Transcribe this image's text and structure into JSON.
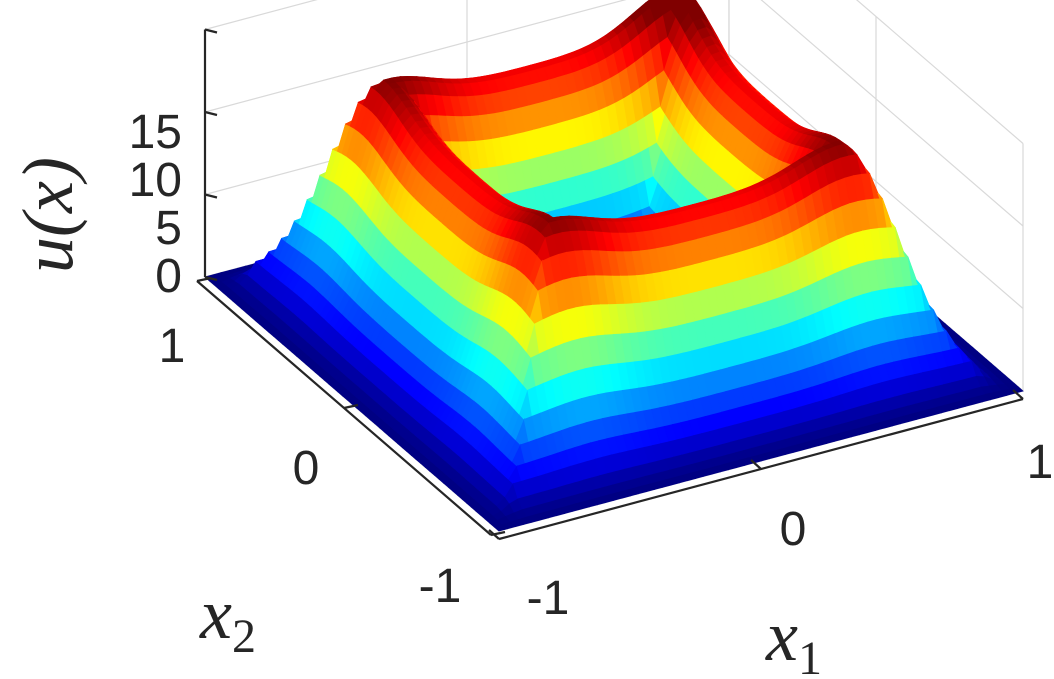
{
  "chart_data": {
    "type": "surface",
    "title": "",
    "xlabel": "x",
    "xlabel_sub": "1",
    "ylabel": "x",
    "ylabel_sub": "2",
    "zlabel": "u(x)",
    "xlim": [
      -1,
      1
    ],
    "ylim": [
      -1,
      1
    ],
    "zlim": [
      0,
      15
    ],
    "xticks": [
      -1,
      0,
      1
    ],
    "yticks": [
      -1,
      0,
      1
    ],
    "zticks": [
      0,
      5,
      10,
      15
    ],
    "xtick_labels": [
      "-1",
      "0",
      "1"
    ],
    "ytick_labels": [
      "-1",
      "0",
      "1"
    ],
    "ztick_labels": [
      "0",
      "5",
      "10",
      "15"
    ],
    "colormap": "jet",
    "grid": true,
    "surface": {
      "shape": "square ring",
      "ring_peak_value": 12,
      "ring_center_offset": 0.55,
      "center_value": 0,
      "edge_value": 0,
      "corner_peak_values": [
        {
          "x": -0.55,
          "y": -0.55,
          "u": 13.5
        },
        {
          "x": 0.55,
          "y": -0.55,
          "u": 13.5
        },
        {
          "x": 0.55,
          "y": 0.55,
          "u": 14.5
        },
        {
          "x": -0.55,
          "y": 0.55,
          "u": 13.5
        }
      ]
    }
  }
}
